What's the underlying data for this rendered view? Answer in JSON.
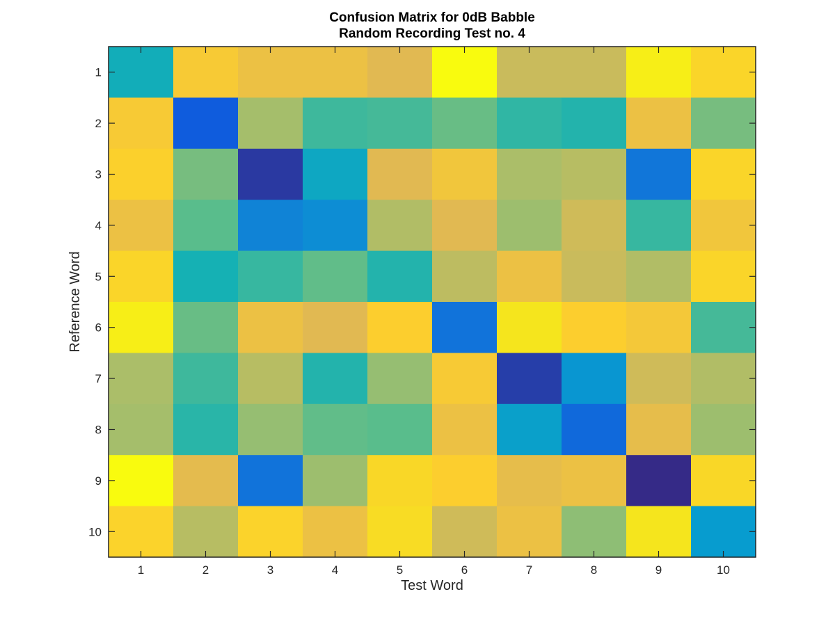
{
  "chart_data": {
    "type": "heatmap",
    "title_lines": [
      "Confusion Matrix for 0dB Babble",
      "Random Recording Test no. 4"
    ],
    "xlabel": "Test Word",
    "ylabel": "Reference Word",
    "x_categories": [
      "1",
      "2",
      "3",
      "4",
      "5",
      "6",
      "7",
      "8",
      "9",
      "10"
    ],
    "y_categories": [
      "1",
      "2",
      "3",
      "4",
      "5",
      "6",
      "7",
      "8",
      "9",
      "10"
    ],
    "colormap": "parula",
    "values": [
      [
        0.38,
        0.78,
        0.74,
        0.74,
        0.7,
        1.0,
        0.66,
        0.66,
        0.94,
        0.83
      ],
      [
        0.78,
        0.1,
        0.6,
        0.46,
        0.47,
        0.52,
        0.44,
        0.42,
        0.74,
        0.54
      ],
      [
        0.81,
        0.54,
        0.03,
        0.35,
        0.7,
        0.76,
        0.61,
        0.63,
        0.18,
        0.83
      ],
      [
        0.74,
        0.5,
        0.22,
        0.25,
        0.62,
        0.7,
        0.59,
        0.67,
        0.45,
        0.76
      ],
      [
        0.83,
        0.4,
        0.45,
        0.51,
        0.42,
        0.64,
        0.74,
        0.66,
        0.62,
        0.83
      ],
      [
        0.94,
        0.52,
        0.74,
        0.7,
        0.8,
        0.17,
        0.9,
        0.8,
        0.77,
        0.47
      ],
      [
        0.61,
        0.46,
        0.63,
        0.42,
        0.58,
        0.78,
        0.04,
        0.28,
        0.67,
        0.62
      ],
      [
        0.6,
        0.43,
        0.58,
        0.51,
        0.5,
        0.74,
        0.32,
        0.14,
        0.72,
        0.59
      ],
      [
        1.0,
        0.71,
        0.17,
        0.59,
        0.84,
        0.8,
        0.72,
        0.74,
        0.0,
        0.84
      ],
      [
        0.82,
        0.63,
        0.82,
        0.74,
        0.86,
        0.67,
        0.74,
        0.57,
        0.9,
        0.3
      ]
    ]
  }
}
